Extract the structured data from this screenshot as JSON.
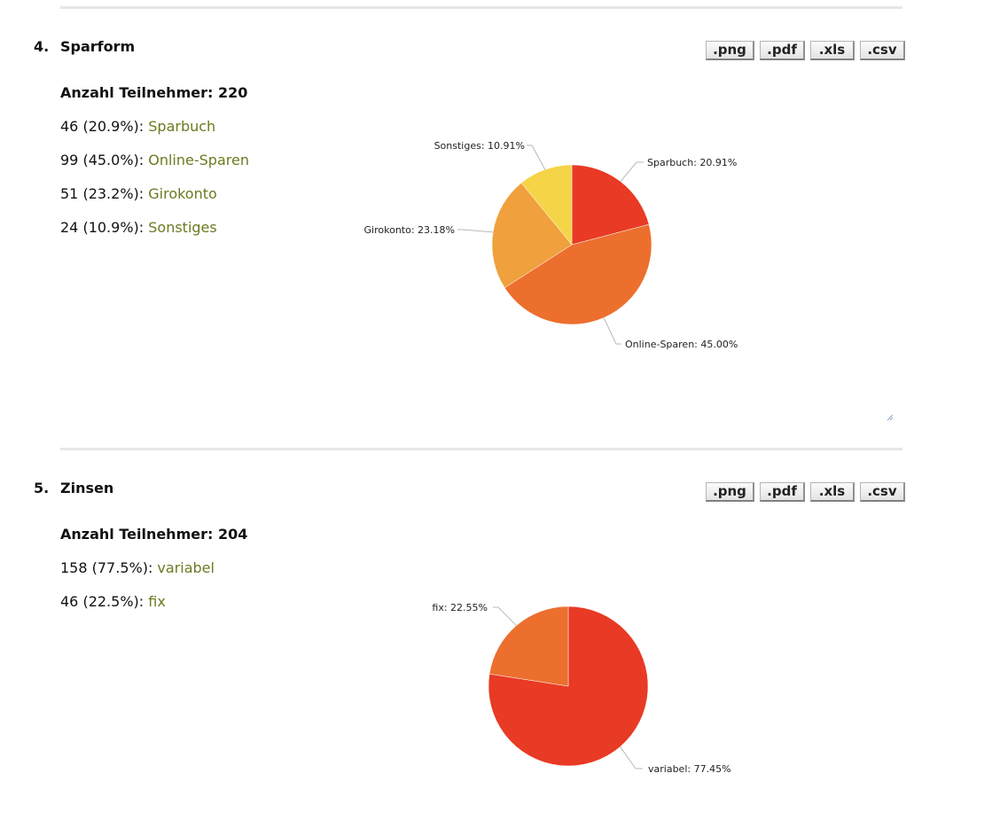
{
  "questions": [
    {
      "number": "4.",
      "title": "Sparform",
      "participants": "Anzahl Teilnehmer: 220",
      "answers": [
        {
          "count": "46 (20.9%):",
          "option": "Sparbuch"
        },
        {
          "count": "99 (45.0%):",
          "option": "Online-Sparen"
        },
        {
          "count": "51 (23.2%):",
          "option": "Girokonto"
        },
        {
          "count": "24 (10.9%):",
          "option": "Sonstiges"
        }
      ],
      "exports": [
        ".png",
        ".pdf",
        ".xls",
        ".csv"
      ]
    },
    {
      "number": "5.",
      "title": "Zinsen",
      "participants": "Anzahl Teilnehmer: 204",
      "answers": [
        {
          "count": "158 (77.5%):",
          "option": "variabel"
        },
        {
          "count": "46 (22.5%):",
          "option": "fix"
        }
      ],
      "exports": [
        ".png",
        ".pdf",
        ".xls",
        ".csv"
      ]
    }
  ],
  "chart_data": [
    {
      "type": "pie",
      "slices": [
        {
          "label": "Sparbuch",
          "value": 20.91,
          "display": "Sparbuch: 20.91%",
          "color": "#e83a24"
        },
        {
          "label": "Online-Sparen",
          "value": 45.0,
          "display": "Online-Sparen: 45.00%",
          "color": "#ec6f2e"
        },
        {
          "label": "Girokonto",
          "value": 23.18,
          "display": "Girokonto: 23.18%",
          "color": "#f0a03c"
        },
        {
          "label": "Sonstiges",
          "value": 10.91,
          "display": "Sonstiges: 10.91%",
          "color": "#f5d547"
        }
      ]
    },
    {
      "type": "pie",
      "slices": [
        {
          "label": "variabel",
          "value": 77.45,
          "display": "variabel: 77.45%",
          "color": "#e83a24"
        },
        {
          "label": "fix",
          "value": 22.55,
          "display": "fix: 22.55%",
          "color": "#ec6f2e"
        }
      ]
    }
  ]
}
